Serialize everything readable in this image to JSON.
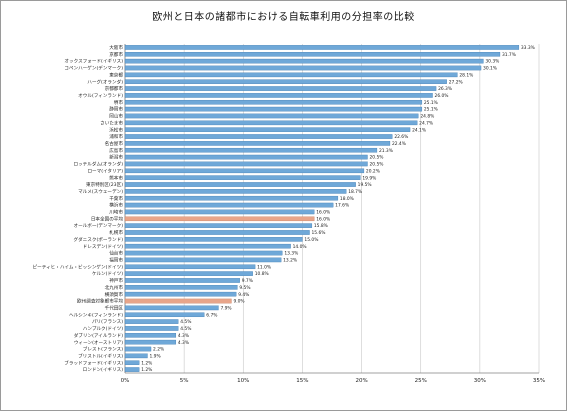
{
  "chart_data": {
    "type": "bar",
    "orientation": "horizontal",
    "title": "欧州と日本の諸都市における自転車利用の分担率の比較",
    "xlim": [
      0,
      35
    ],
    "x_ticks": [
      "0%",
      "5%",
      "10%",
      "15%",
      "20%",
      "25%",
      "30%",
      "35%"
    ],
    "grid": true,
    "legend": "none",
    "colors": {
      "bar": "#6fa8d8",
      "bar_edge": "#2f6fa8",
      "highlight": "#e8a58a",
      "grid": "#c8c8c8",
      "axis": "#808080"
    },
    "categories": [
      "大阪市",
      "京都市",
      "オックスフォード(イギリス)",
      "コペンハーゲン(デンマーク)",
      "東京都",
      "ハーグ(オランダ)",
      "京都都市",
      "オウル(フィンランド)",
      "堺市",
      "静岡市",
      "岡山市",
      "さいたま市",
      "浜松市",
      "浦和市",
      "名古屋市",
      "広島市",
      "新潟市",
      "ロッテルダム(オランダ)",
      "ローマ(イタリア)",
      "熊本市",
      "東京特別区(23区)",
      "マルメ(スウェーデン)",
      "千葉市",
      "横浜市",
      "川崎市",
      "日本全国の平均",
      "オールボー(デンマーク)",
      "札幌市",
      "グダニスク(ポーランド)",
      "ドレスデン(ドイツ)",
      "仙台市",
      "福岡市",
      "ピーティヒ・ハイム・ビッシンゲン(ドイツ)",
      "ケルン(ドイツ)",
      "神戸市",
      "北九州市",
      "横須賀市",
      "欧州調査対象都市平均",
      "千代田区",
      "ヘルシンキ(フィンランド)",
      "パリ(フランス)",
      "ハンブルク(ドイツ)",
      "ダブリン(アイルランド)",
      "ウィーン(オーストリア)",
      "ブレスト(フランス)",
      "ブリストル(イギリス)",
      "ブラッドフォード(イギリス)",
      "ロンドン(イギリス)"
    ],
    "values": [
      33.3,
      31.7,
      30.3,
      30.1,
      28.1,
      27.2,
      26.3,
      26.0,
      25.1,
      25.1,
      24.8,
      24.7,
      24.1,
      22.6,
      22.4,
      21.3,
      20.5,
      20.5,
      20.2,
      19.9,
      19.5,
      18.7,
      18.0,
      17.6,
      16.0,
      16.0,
      15.8,
      15.6,
      15.0,
      14.0,
      13.3,
      13.2,
      11.0,
      10.8,
      9.7,
      9.5,
      9.4,
      9.0,
      7.9,
      6.7,
      4.5,
      4.5,
      4.3,
      4.3,
      2.2,
      1.9,
      1.2,
      1.2
    ],
    "value_labels": [
      "33.3%",
      "31.7%",
      "30.3%",
      "30.1%",
      "28.1%",
      "27.2%",
      "26.3%",
      "26.0%",
      "25.1%",
      "25.1%",
      "24.8%",
      "24.7%",
      "24.1%",
      "22.6%",
      "22.4%",
      "21.3%",
      "20.5%",
      "20.5%",
      "20.2%",
      "19.9%",
      "19.5%",
      "18.7%",
      "18.0%",
      "17.6%",
      "16.0%",
      "16.0%",
      "15.8%",
      "15.6%",
      "15.0%",
      "14.0%",
      "13.3%",
      "13.2%",
      "11.0%",
      "10.8%",
      "9.7%",
      "9.5%",
      "9.4%",
      "9.0%",
      "7.9%",
      "6.7%",
      "4.5%",
      "4.5%",
      "4.3%",
      "4.3%",
      "2.2%",
      "1.9%",
      "1.2%",
      "1.2%"
    ],
    "highlighted_categories": [
      "日本全国の平均",
      "欧州調査対象都市平均"
    ]
  }
}
